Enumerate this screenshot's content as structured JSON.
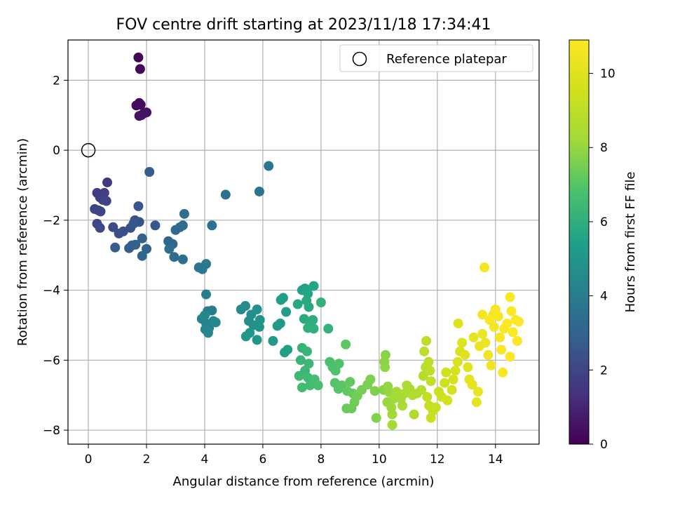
{
  "chart_data": {
    "type": "scatter",
    "title": "FOV centre drift starting at 2023/11/18 17:34:41",
    "xlabel": "Angular distance from reference (arcmin)",
    "ylabel": "Rotation from reference (arcmin)",
    "xlim": [
      -0.7,
      15.5
    ],
    "ylim": [
      -8.4,
      3.15
    ],
    "xticks": [
      0,
      2,
      4,
      6,
      8,
      10,
      12,
      14
    ],
    "yticks": [
      2,
      0,
      -2,
      -4,
      -6,
      -8
    ],
    "grid": true,
    "legend": {
      "placement": "top-right",
      "entries": [
        "Reference platepar"
      ]
    },
    "reference_point": {
      "x": 0,
      "y": 0
    },
    "colorbar": {
      "label": "Hours from first FF file",
      "range": [
        0,
        10.9
      ],
      "ticks": [
        0,
        2,
        4,
        6,
        8,
        10
      ],
      "colormap": "viridis"
    },
    "points": [
      [
        1.72,
        2.65,
        0.1
      ],
      [
        1.78,
        2.32,
        0.15
      ],
      [
        1.75,
        1.35,
        0.2
      ],
      [
        1.65,
        1.28,
        0.25
      ],
      [
        1.8,
        1.3,
        0.3
      ],
      [
        1.75,
        0.98,
        0.35
      ],
      [
        1.9,
        1.05,
        0.4
      ],
      [
        2.0,
        1.08,
        0.45
      ],
      [
        1.82,
        1.0,
        0.5
      ],
      [
        0.65,
        -0.92,
        1.6
      ],
      [
        0.3,
        -1.22,
        1.7
      ],
      [
        0.55,
        -1.22,
        1.75
      ],
      [
        0.4,
        -1.35,
        1.8
      ],
      [
        0.5,
        -1.42,
        1.85
      ],
      [
        0.62,
        -1.45,
        1.9
      ],
      [
        0.22,
        -1.68,
        1.95
      ],
      [
        0.35,
        -1.72,
        2.0
      ],
      [
        0.42,
        -1.75,
        2.05
      ],
      [
        0.3,
        -2.1,
        2.1
      ],
      [
        0.4,
        -2.22,
        2.15
      ],
      [
        0.85,
        -2.2,
        2.2
      ],
      [
        1.05,
        -2.38,
        2.25
      ],
      [
        1.2,
        -2.32,
        2.3
      ],
      [
        1.45,
        -2.22,
        2.35
      ],
      [
        1.6,
        -2.0,
        2.4
      ],
      [
        1.75,
        -2.05,
        2.45
      ],
      [
        1.72,
        -1.6,
        2.5
      ],
      [
        1.55,
        -2.1,
        2.55
      ],
      [
        2.3,
        -2.15,
        2.6
      ],
      [
        2.1,
        -0.62,
        2.7
      ],
      [
        0.92,
        -2.78,
        2.75
      ],
      [
        1.4,
        -2.8,
        2.8
      ],
      [
        1.5,
        -2.72,
        2.85
      ],
      [
        1.62,
        -2.7,
        2.9
      ],
      [
        1.85,
        -2.52,
        2.95
      ],
      [
        2.0,
        -2.82,
        3.0
      ],
      [
        1.85,
        -3.02,
        3.05
      ],
      [
        2.75,
        -2.6,
        3.1
      ],
      [
        2.9,
        -2.68,
        3.15
      ],
      [
        3.0,
        -2.28,
        3.2
      ],
      [
        3.15,
        -2.2,
        3.25
      ],
      [
        3.25,
        -2.15,
        3.3
      ],
      [
        3.3,
        -1.82,
        3.35
      ],
      [
        2.95,
        -3.05,
        3.4
      ],
      [
        3.25,
        -3.12,
        3.45
      ],
      [
        2.78,
        -2.82,
        3.5
      ],
      [
        4.25,
        -2.15,
        3.55
      ],
      [
        4.72,
        -1.27,
        3.6
      ],
      [
        5.88,
        -1.18,
        3.65
      ],
      [
        6.2,
        -0.45,
        3.7
      ],
      [
        3.8,
        -3.35,
        3.75
      ],
      [
        3.92,
        -3.4,
        3.8
      ],
      [
        4.05,
        -3.25,
        3.85
      ],
      [
        4.05,
        -4.12,
        4.0
      ],
      [
        4.1,
        -4.6,
        4.05
      ],
      [
        4.25,
        -4.58,
        4.1
      ],
      [
        3.9,
        -4.82,
        4.15
      ],
      [
        4.05,
        -4.95,
        4.2
      ],
      [
        4.15,
        -5.08,
        4.25
      ],
      [
        4.02,
        -5.12,
        4.3
      ],
      [
        4.12,
        -5.22,
        4.35
      ],
      [
        4.3,
        -4.88,
        4.4
      ],
      [
        4.38,
        -4.92,
        4.45
      ],
      [
        4.0,
        -4.72,
        4.5
      ],
      [
        5.25,
        -4.55,
        4.55
      ],
      [
        5.4,
        -4.45,
        4.6
      ],
      [
        5.52,
        -4.88,
        4.65
      ],
      [
        5.6,
        -4.7,
        4.7
      ],
      [
        5.8,
        -4.55,
        4.75
      ],
      [
        5.68,
        -5.0,
        4.8
      ],
      [
        5.9,
        -4.85,
        4.85
      ],
      [
        5.88,
        -5.05,
        4.9
      ],
      [
        5.55,
        -5.22,
        4.95
      ],
      [
        5.42,
        -5.32,
        5.0
      ],
      [
        5.8,
        -5.42,
        5.05
      ],
      [
        6.35,
        -5.45,
        5.1
      ],
      [
        6.6,
        -4.95,
        5.15
      ],
      [
        6.5,
        -5.02,
        5.2
      ],
      [
        6.8,
        -4.62,
        5.25
      ],
      [
        6.62,
        -4.28,
        5.3
      ],
      [
        6.7,
        -4.22,
        5.35
      ],
      [
        6.75,
        -5.78,
        5.4
      ],
      [
        6.85,
        -5.7,
        5.45
      ],
      [
        7.35,
        -4.0,
        5.5
      ],
      [
        7.45,
        -3.95,
        5.55
      ],
      [
        7.55,
        -4.1,
        5.6
      ],
      [
        7.75,
        -3.88,
        5.65
      ],
      [
        7.2,
        -4.4,
        5.7
      ],
      [
        7.5,
        -4.3,
        5.75
      ],
      [
        7.58,
        -4.48,
        5.8
      ],
      [
        7.42,
        -4.82,
        5.85
      ],
      [
        7.62,
        -4.9,
        5.9
      ],
      [
        7.72,
        -4.85,
        5.95
      ],
      [
        7.55,
        -5.08,
        6.0
      ],
      [
        7.75,
        -5.1,
        6.05
      ],
      [
        8.0,
        -4.35,
        6.1
      ],
      [
        8.25,
        -5.1,
        6.15
      ],
      [
        7.35,
        -5.65,
        6.2
      ],
      [
        7.52,
        -5.75,
        6.25
      ],
      [
        7.3,
        -6.0,
        6.3
      ],
      [
        7.45,
        -6.3,
        6.35
      ],
      [
        7.58,
        -6.1,
        6.4
      ],
      [
        7.25,
        -6.45,
        6.45
      ],
      [
        7.55,
        -6.5,
        6.5
      ],
      [
        7.35,
        -6.78,
        6.55
      ],
      [
        7.62,
        -6.72,
        6.6
      ],
      [
        7.78,
        -6.55,
        6.65
      ],
      [
        7.9,
        -6.72,
        6.7
      ],
      [
        8.3,
        -6.05,
        6.75
      ],
      [
        8.4,
        -6.2,
        6.8
      ],
      [
        8.5,
        -6.3,
        6.85
      ],
      [
        8.62,
        -6.1,
        6.9
      ],
      [
        8.48,
        -6.65,
        6.95
      ],
      [
        8.6,
        -6.82,
        7.0
      ],
      [
        8.72,
        -6.72,
        7.05
      ],
      [
        8.85,
        -5.55,
        7.1
      ],
      [
        8.9,
        -6.88,
        7.15
      ],
      [
        9.0,
        -6.62,
        7.2
      ],
      [
        9.1,
        -6.95,
        7.25
      ],
      [
        8.88,
        -7.38,
        7.3
      ],
      [
        9.05,
        -7.38,
        7.35
      ],
      [
        9.15,
        -7.2,
        7.4
      ],
      [
        9.25,
        -7.02,
        7.45
      ],
      [
        9.4,
        -6.85,
        7.5
      ],
      [
        9.6,
        -6.7,
        7.55
      ],
      [
        9.7,
        -6.55,
        7.6
      ],
      [
        9.85,
        -6.88,
        7.65
      ],
      [
        9.9,
        -7.65,
        7.7
      ],
      [
        10.15,
        -6.85,
        7.75
      ],
      [
        10.22,
        -5.85,
        7.8
      ],
      [
        10.18,
        -6.05,
        7.85
      ],
      [
        10.2,
        -6.2,
        7.9
      ],
      [
        10.3,
        -6.75,
        7.95
      ],
      [
        10.35,
        -6.92,
        8.0
      ],
      [
        10.28,
        -7.2,
        8.05
      ],
      [
        10.42,
        -7.35,
        8.1
      ],
      [
        10.5,
        -7.1,
        8.15
      ],
      [
        10.45,
        -7.55,
        8.2
      ],
      [
        10.45,
        -7.85,
        8.25
      ],
      [
        10.6,
        -6.9,
        8.3
      ],
      [
        10.75,
        -7.1,
        8.35
      ],
      [
        10.8,
        -7.3,
        8.4
      ],
      [
        10.88,
        -6.95,
        8.45
      ],
      [
        10.95,
        -6.72,
        8.5
      ],
      [
        11.05,
        -6.82,
        8.55
      ],
      [
        11.15,
        -7.0,
        8.6
      ],
      [
        11.2,
        -7.55,
        8.65
      ],
      [
        11.3,
        -6.95,
        8.7
      ],
      [
        11.45,
        -6.85,
        8.75
      ],
      [
        11.52,
        -6.45,
        8.8
      ],
      [
        11.6,
        -6.2,
        8.85
      ],
      [
        11.55,
        -5.75,
        8.9
      ],
      [
        11.62,
        -5.45,
        8.95
      ],
      [
        11.7,
        -6.05,
        9.0
      ],
      [
        11.75,
        -6.3,
        9.05
      ],
      [
        11.78,
        -6.6,
        9.1
      ],
      [
        11.65,
        -7.05,
        9.15
      ],
      [
        11.72,
        -7.3,
        9.2
      ],
      [
        11.85,
        -7.45,
        9.25
      ],
      [
        11.78,
        -7.65,
        9.3
      ],
      [
        11.95,
        -7.35,
        9.35
      ],
      [
        12.05,
        -6.9,
        9.4
      ],
      [
        12.15,
        -7.05,
        9.45
      ],
      [
        12.25,
        -6.65,
        9.5
      ],
      [
        12.3,
        -6.35,
        9.55
      ],
      [
        12.35,
        -7.15,
        9.6
      ],
      [
        12.5,
        -6.85,
        9.65
      ],
      [
        12.55,
        -6.55,
        9.7
      ],
      [
        12.62,
        -6.3,
        9.75
      ],
      [
        12.7,
        -6.05,
        9.8
      ],
      [
        12.78,
        -5.75,
        9.85
      ],
      [
        12.72,
        -4.95,
        9.9
      ],
      [
        12.85,
        -5.5,
        9.95
      ],
      [
        12.95,
        -5.85,
        10.0
      ],
      [
        13.05,
        -6.2,
        10.05
      ],
      [
        13.1,
        -6.55,
        10.1
      ],
      [
        13.2,
        -6.7,
        10.15
      ],
      [
        13.35,
        -7.2,
        10.2
      ],
      [
        13.4,
        -6.9,
        10.25
      ],
      [
        13.25,
        -5.35,
        10.3
      ],
      [
        13.45,
        -5.6,
        10.35
      ],
      [
        13.55,
        -5.25,
        10.4
      ],
      [
        13.65,
        -5.5,
        10.45
      ],
      [
        13.75,
        -5.85,
        10.5
      ],
      [
        13.85,
        -6.15,
        10.55
      ],
      [
        13.95,
        -5.05,
        10.6
      ],
      [
        13.55,
        -4.7,
        10.62
      ],
      [
        13.62,
        -3.35,
        10.65
      ],
      [
        13.8,
        -4.85,
        10.68
      ],
      [
        13.92,
        -4.7,
        10.7
      ],
      [
        14.0,
        -4.55,
        10.72
      ],
      [
        14.1,
        -4.75,
        10.74
      ],
      [
        14.15,
        -5.35,
        10.76
      ],
      [
        14.2,
        -5.7,
        10.78
      ],
      [
        14.25,
        -6.35,
        10.8
      ],
      [
        14.3,
        -5.1,
        10.82
      ],
      [
        14.4,
        -4.95,
        10.84
      ],
      [
        14.5,
        -4.2,
        10.86
      ],
      [
        14.55,
        -4.6,
        10.87
      ],
      [
        14.6,
        -5.2,
        10.88
      ],
      [
        14.5,
        -5.9,
        10.89
      ],
      [
        14.7,
        -4.85,
        10.9
      ],
      [
        14.8,
        -4.9,
        10.9
      ],
      [
        14.75,
        -5.45,
        10.9
      ]
    ]
  }
}
